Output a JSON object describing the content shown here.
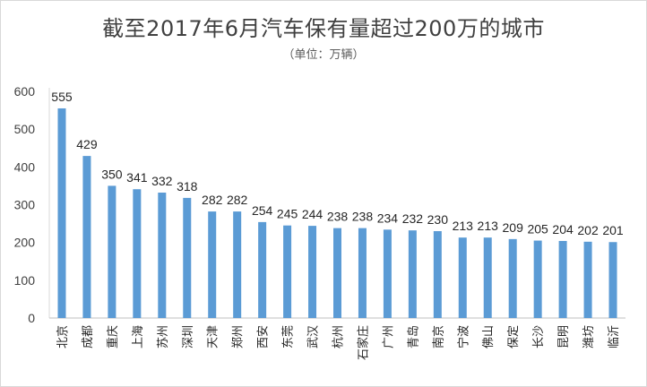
{
  "chart_data": {
    "type": "bar",
    "title": "截至2017年6月汽车保有量超过200万的城市",
    "subtitle": "（单位：万辆）",
    "categories": [
      "北京",
      "成都",
      "重庆",
      "上海",
      "苏州",
      "深圳",
      "天津",
      "郑州",
      "西安",
      "东莞",
      "武汉",
      "杭州",
      "石家庄",
      "广州",
      "青岛",
      "南京",
      "宁波",
      "佛山",
      "保定",
      "长沙",
      "昆明",
      "潍坊",
      "临沂"
    ],
    "values": [
      555,
      429,
      350,
      341,
      332,
      318,
      282,
      282,
      254,
      245,
      244,
      238,
      238,
      234,
      232,
      230,
      213,
      213,
      209,
      205,
      204,
      202,
      201
    ],
    "ylim": [
      0,
      600
    ],
    "yticks": [
      0,
      100,
      200,
      300,
      400,
      500,
      600
    ],
    "grid": false,
    "legend": "none",
    "bar_color": "#5b9bd5"
  }
}
